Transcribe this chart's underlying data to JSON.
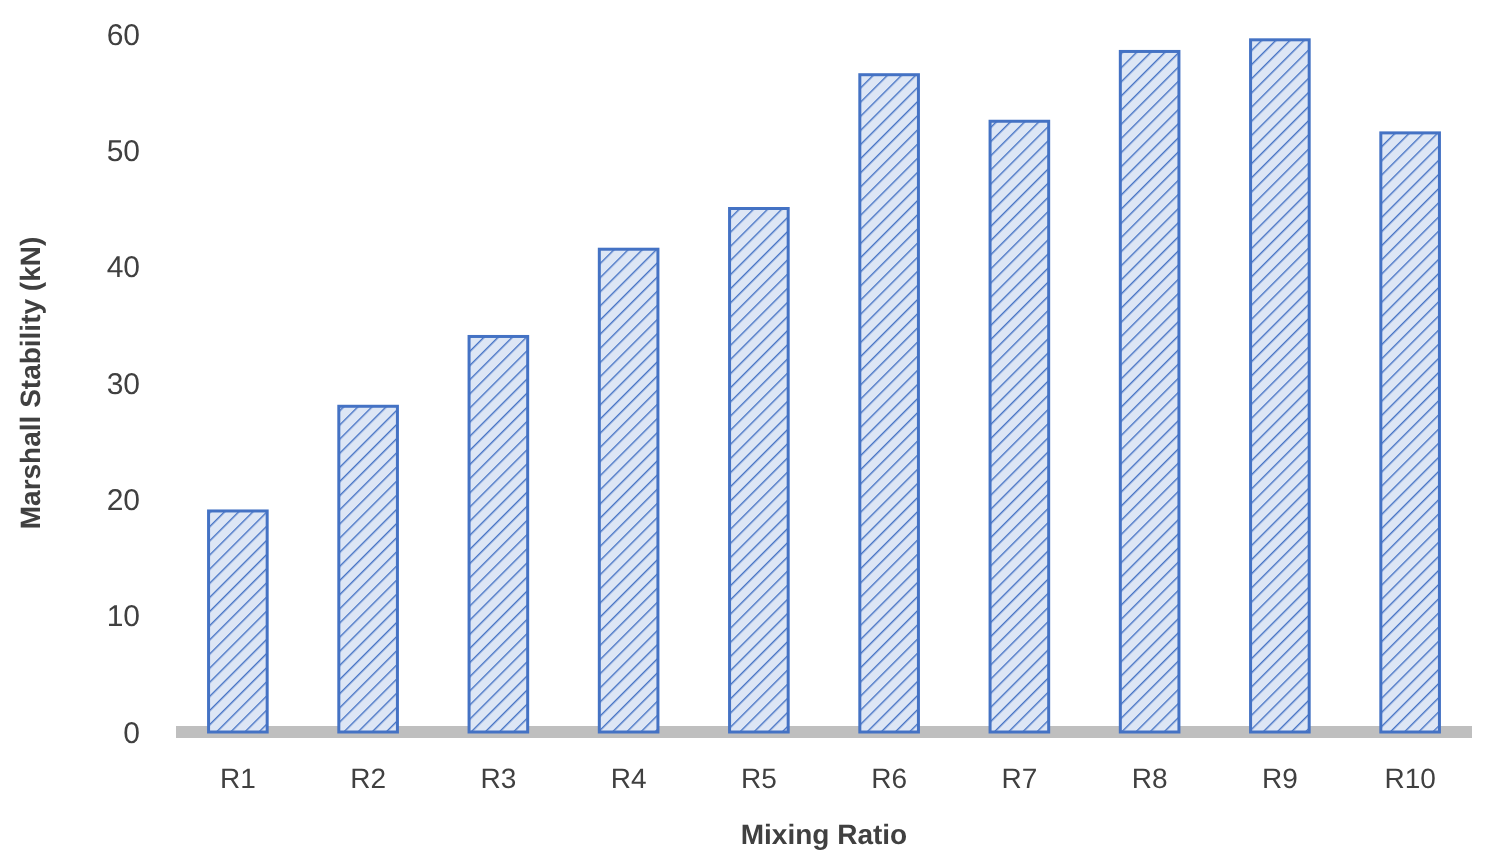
{
  "chart_data": {
    "type": "bar",
    "xlabel": "Mixing Ratio",
    "ylabel": "Marshall Stability (kN)",
    "categories": [
      "R1",
      "R2",
      "R3",
      "R4",
      "R5",
      "R6",
      "R7",
      "R8",
      "R9",
      "R10"
    ],
    "values": [
      19,
      28,
      34,
      41.5,
      45,
      56.5,
      52.5,
      58.5,
      59.5,
      51.5
    ],
    "color": "#4472c4",
    "ylim": [
      0,
      60
    ],
    "yticks": [
      0,
      10,
      20,
      30,
      40,
      50,
      60
    ],
    "grid": false
  }
}
